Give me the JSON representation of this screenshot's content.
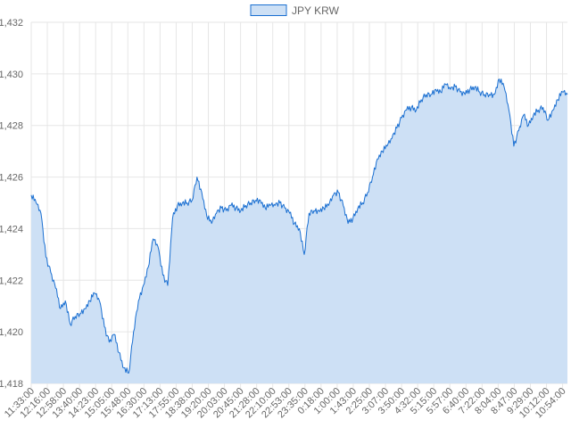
{
  "chart_data": {
    "type": "area",
    "title": "",
    "xlabel": "",
    "ylabel": "",
    "ylim": [
      1418,
      1432
    ],
    "y_ticks": [
      1418,
      1420,
      1422,
      1424,
      1426,
      1428,
      1430,
      1432
    ],
    "y_tick_labels": [
      "1,418",
      "1,420",
      "1,422",
      "1,424",
      "1,426",
      "1,428",
      "1,430",
      "1,432"
    ],
    "x_tick_labels": [
      "11:33:00",
      "12:16:00",
      "12:58:00",
      "13:40:00",
      "14:23:00",
      "15:05:00",
      "15:48:00",
      "16:30:00",
      "17:13:00",
      "17:55:00",
      "18:38:00",
      "19:20:00",
      "20:03:00",
      "20:45:00",
      "21:28:00",
      "22:10:00",
      "22:53:00",
      "23:35:00",
      "0:18:00",
      "1:00:00",
      "1:43:00",
      "2:25:00",
      "3:07:00",
      "3:50:00",
      "4:32:00",
      "5:15:00",
      "5:57:00",
      "6:40:00",
      "7:22:00",
      "8:04:00",
      "8:47:00",
      "9:29:00",
      "10:12:00",
      "10:54:00"
    ],
    "grid": true,
    "legend_position": "top-center",
    "series": [
      {
        "name": "JPY KRW",
        "line_color": "#1a6fd1",
        "fill_color": "#cde0f5",
        "values": [
          1425.3,
          1425.0,
          1424.6,
          1422.9,
          1422.3,
          1421.7,
          1420.9,
          1421.2,
          1420.3,
          1420.6,
          1420.7,
          1420.9,
          1421.2,
          1421.5,
          1421.2,
          1420.2,
          1419.6,
          1419.9,
          1419.2,
          1418.6,
          1418.4,
          1420.0,
          1421.2,
          1421.8,
          1422.5,
          1423.6,
          1423.3,
          1422.2,
          1421.8,
          1424.4,
          1424.9,
          1425.0,
          1425.0,
          1425.1,
          1426.0,
          1425.4,
          1424.5,
          1424.2,
          1424.6,
          1424.8,
          1424.7,
          1424.9,
          1424.8,
          1424.7,
          1424.9,
          1425.0,
          1425.1,
          1425.1,
          1424.8,
          1424.9,
          1424.9,
          1425.0,
          1424.8,
          1424.6,
          1424.2,
          1424.0,
          1423.0,
          1424.6,
          1424.7,
          1424.7,
          1424.8,
          1424.9,
          1425.3,
          1425.4,
          1424.9,
          1424.2,
          1424.4,
          1424.8,
          1425.0,
          1425.4,
          1426.0,
          1426.7,
          1427.0,
          1427.2,
          1427.5,
          1427.9,
          1428.3,
          1428.6,
          1428.7,
          1428.6,
          1429.0,
          1429.2,
          1429.2,
          1429.4,
          1429.3,
          1429.6,
          1429.4,
          1429.5,
          1429.3,
          1429.2,
          1429.4,
          1429.5,
          1429.3,
          1429.2,
          1429.2,
          1429.2,
          1429.8,
          1429.5,
          1428.6,
          1427.2,
          1427.8,
          1428.4,
          1428.0,
          1428.4,
          1428.6,
          1428.7,
          1428.2,
          1428.6,
          1429.0,
          1429.3,
          1429.2
        ]
      }
    ]
  }
}
